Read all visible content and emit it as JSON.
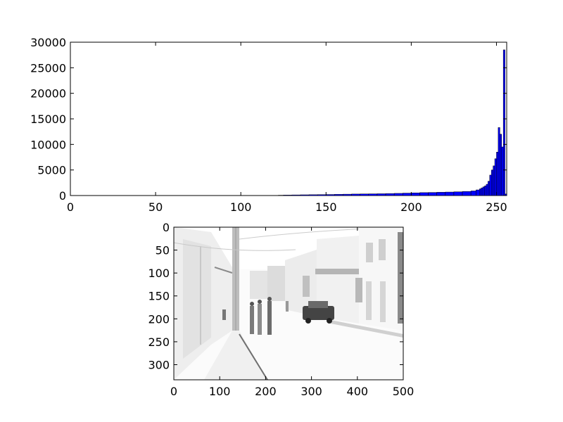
{
  "chart_data": [
    {
      "type": "bar",
      "title": "",
      "xlabel": "",
      "ylabel": "",
      "xlim": [
        0,
        256
      ],
      "ylim": [
        0,
        30000
      ],
      "xticks": [
        "0",
        "50",
        "100",
        "150",
        "200",
        "250"
      ],
      "yticks": [
        "0",
        "5000",
        "10000",
        "15000",
        "20000",
        "25000",
        "30000"
      ],
      "bar_color": "#0000ff",
      "edge_color": "#000000",
      "grid": false,
      "bins_x": [
        122,
        125,
        130,
        135,
        140,
        145,
        150,
        155,
        160,
        165,
        170,
        175,
        180,
        185,
        190,
        195,
        200,
        205,
        210,
        215,
        220,
        225,
        230,
        235,
        238,
        240,
        241,
        242,
        243,
        244,
        245,
        246,
        247,
        248,
        249,
        250,
        251,
        252,
        253,
        254,
        255
      ],
      "bins_y": [
        60,
        90,
        120,
        140,
        160,
        180,
        200,
        230,
        260,
        290,
        310,
        330,
        350,
        380,
        420,
        470,
        520,
        570,
        600,
        640,
        680,
        730,
        790,
        900,
        1100,
        1300,
        1500,
        1700,
        1900,
        2200,
        2800,
        4000,
        5000,
        5800,
        7200,
        8500,
        13300,
        12000,
        9500,
        28500,
        300
      ]
    },
    {
      "type": "image",
      "title": "",
      "xlim": [
        0,
        500
      ],
      "ylim": [
        333,
        0
      ],
      "xticks": [
        "0",
        "100",
        "200",
        "300",
        "400",
        "500"
      ],
      "yticks": [
        "0",
        "50",
        "100",
        "150",
        "200",
        "250",
        "300"
      ],
      "image_description": ""
    }
  ]
}
